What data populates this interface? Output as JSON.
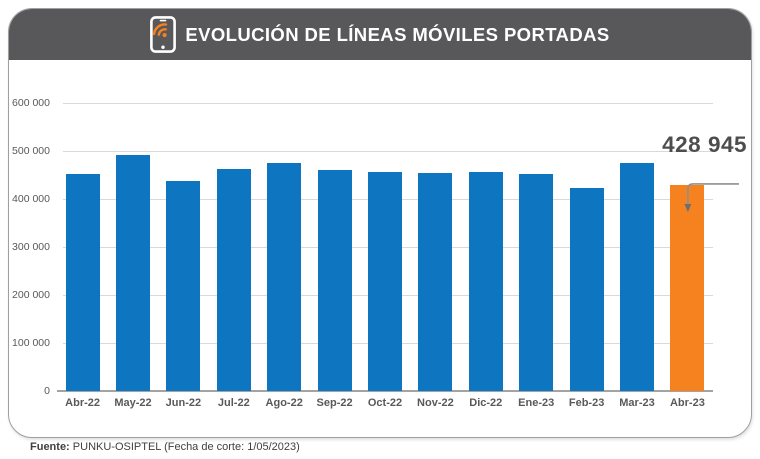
{
  "header": {
    "title": "EVOLUCIÓN DE LÍNEAS MÓVILES PORTADAS",
    "icon": "phone-signal-icon"
  },
  "chart_data": {
    "type": "bar",
    "title": "EVOLUCIÓN DE LÍNEAS MÓVILES PORTADAS",
    "categories": [
      "Abr-22",
      "May-22",
      "Jun-22",
      "Jul-22",
      "Ago-22",
      "Sep-22",
      "Oct-22",
      "Nov-22",
      "Dic-22",
      "Ene-23",
      "Feb-23",
      "Mar-23",
      "Abr-23"
    ],
    "values": [
      452000,
      491000,
      437000,
      463000,
      476000,
      460000,
      457000,
      454000,
      456000,
      453000,
      423000,
      474000,
      428945
    ],
    "highlight_index": 12,
    "highlight_label": "428 945",
    "xlabel": "",
    "ylabel": "",
    "ylim": [
      0,
      600000
    ],
    "yticks": [
      0,
      100000,
      200000,
      300000,
      400000,
      500000,
      600000
    ],
    "ytick_labels": [
      "0",
      "100 000",
      "200 000",
      "300 000",
      "400 000",
      "500 000",
      "600 000"
    ],
    "grid": true,
    "legend": false,
    "bar_color": "#0e76c0",
    "highlight_color": "#f6821f"
  },
  "footer": {
    "source_label": "Fuente:",
    "source_text": " PUNKU-OSIPTEL (Fecha de corte: 1/05/2023)"
  },
  "colors": {
    "header_bg": "#58585a",
    "frame_border": "#9f9f9f",
    "gridline": "#d9d9d9",
    "axis_line": "#a3a3a3",
    "label_text": "#595959",
    "callout_text": "#4d4d4d",
    "leader_line": "#8f8f8f"
  }
}
